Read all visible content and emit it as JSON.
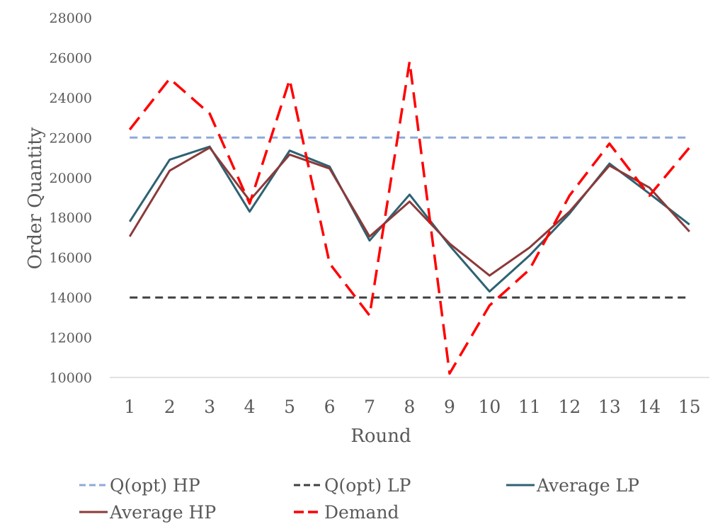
{
  "chart_data": {
    "type": "line",
    "title": "",
    "xlabel": "Round",
    "ylabel": "Order Quantity",
    "categories": [
      "1",
      "2",
      "3",
      "4",
      "5",
      "6",
      "7",
      "8",
      "9",
      "10",
      "11",
      "12",
      "13",
      "14",
      "15"
    ],
    "yticks": [
      "10000",
      "12000",
      "14000",
      "16000",
      "18000",
      "20000",
      "22000",
      "24000",
      "26000",
      "28000"
    ],
    "ylim": [
      10000,
      28000
    ],
    "grid": false,
    "legend_position": "bottom",
    "series": [
      {
        "name": "Q(opt) HP",
        "color": "#8EA9DB",
        "style": "dashed",
        "values": [
          22000,
          22000,
          22000,
          22000,
          22000,
          22000,
          22000,
          22000,
          22000,
          22000,
          22000,
          22000,
          22000,
          22000,
          22000
        ]
      },
      {
        "name": "Q(opt) LP",
        "color": "#404040",
        "style": "dashed",
        "values": [
          14000,
          14000,
          14000,
          14000,
          14000,
          14000,
          14000,
          14000,
          14000,
          14000,
          14000,
          14000,
          14000,
          14000,
          14000
        ]
      },
      {
        "name": "Average LP",
        "color": "#2E6272",
        "style": "solid",
        "values": [
          17800,
          20900,
          21550,
          18300,
          21350,
          20550,
          16850,
          19150,
          16600,
          14300,
          16100,
          18200,
          20700,
          19200,
          17650
        ]
      },
      {
        "name": "Average HP",
        "color": "#8B3A3A",
        "style": "solid",
        "values": [
          17050,
          20350,
          21500,
          18850,
          21150,
          20450,
          17050,
          18800,
          16700,
          15100,
          16500,
          18300,
          20600,
          19500,
          17300
        ]
      },
      {
        "name": "Demand",
        "color": "#FF0000",
        "style": "dashed",
        "values": [
          22400,
          24950,
          23200,
          18700,
          24900,
          15700,
          13100,
          25800,
          10200,
          13600,
          15400,
          19100,
          21700,
          19100,
          21500
        ]
      }
    ]
  }
}
